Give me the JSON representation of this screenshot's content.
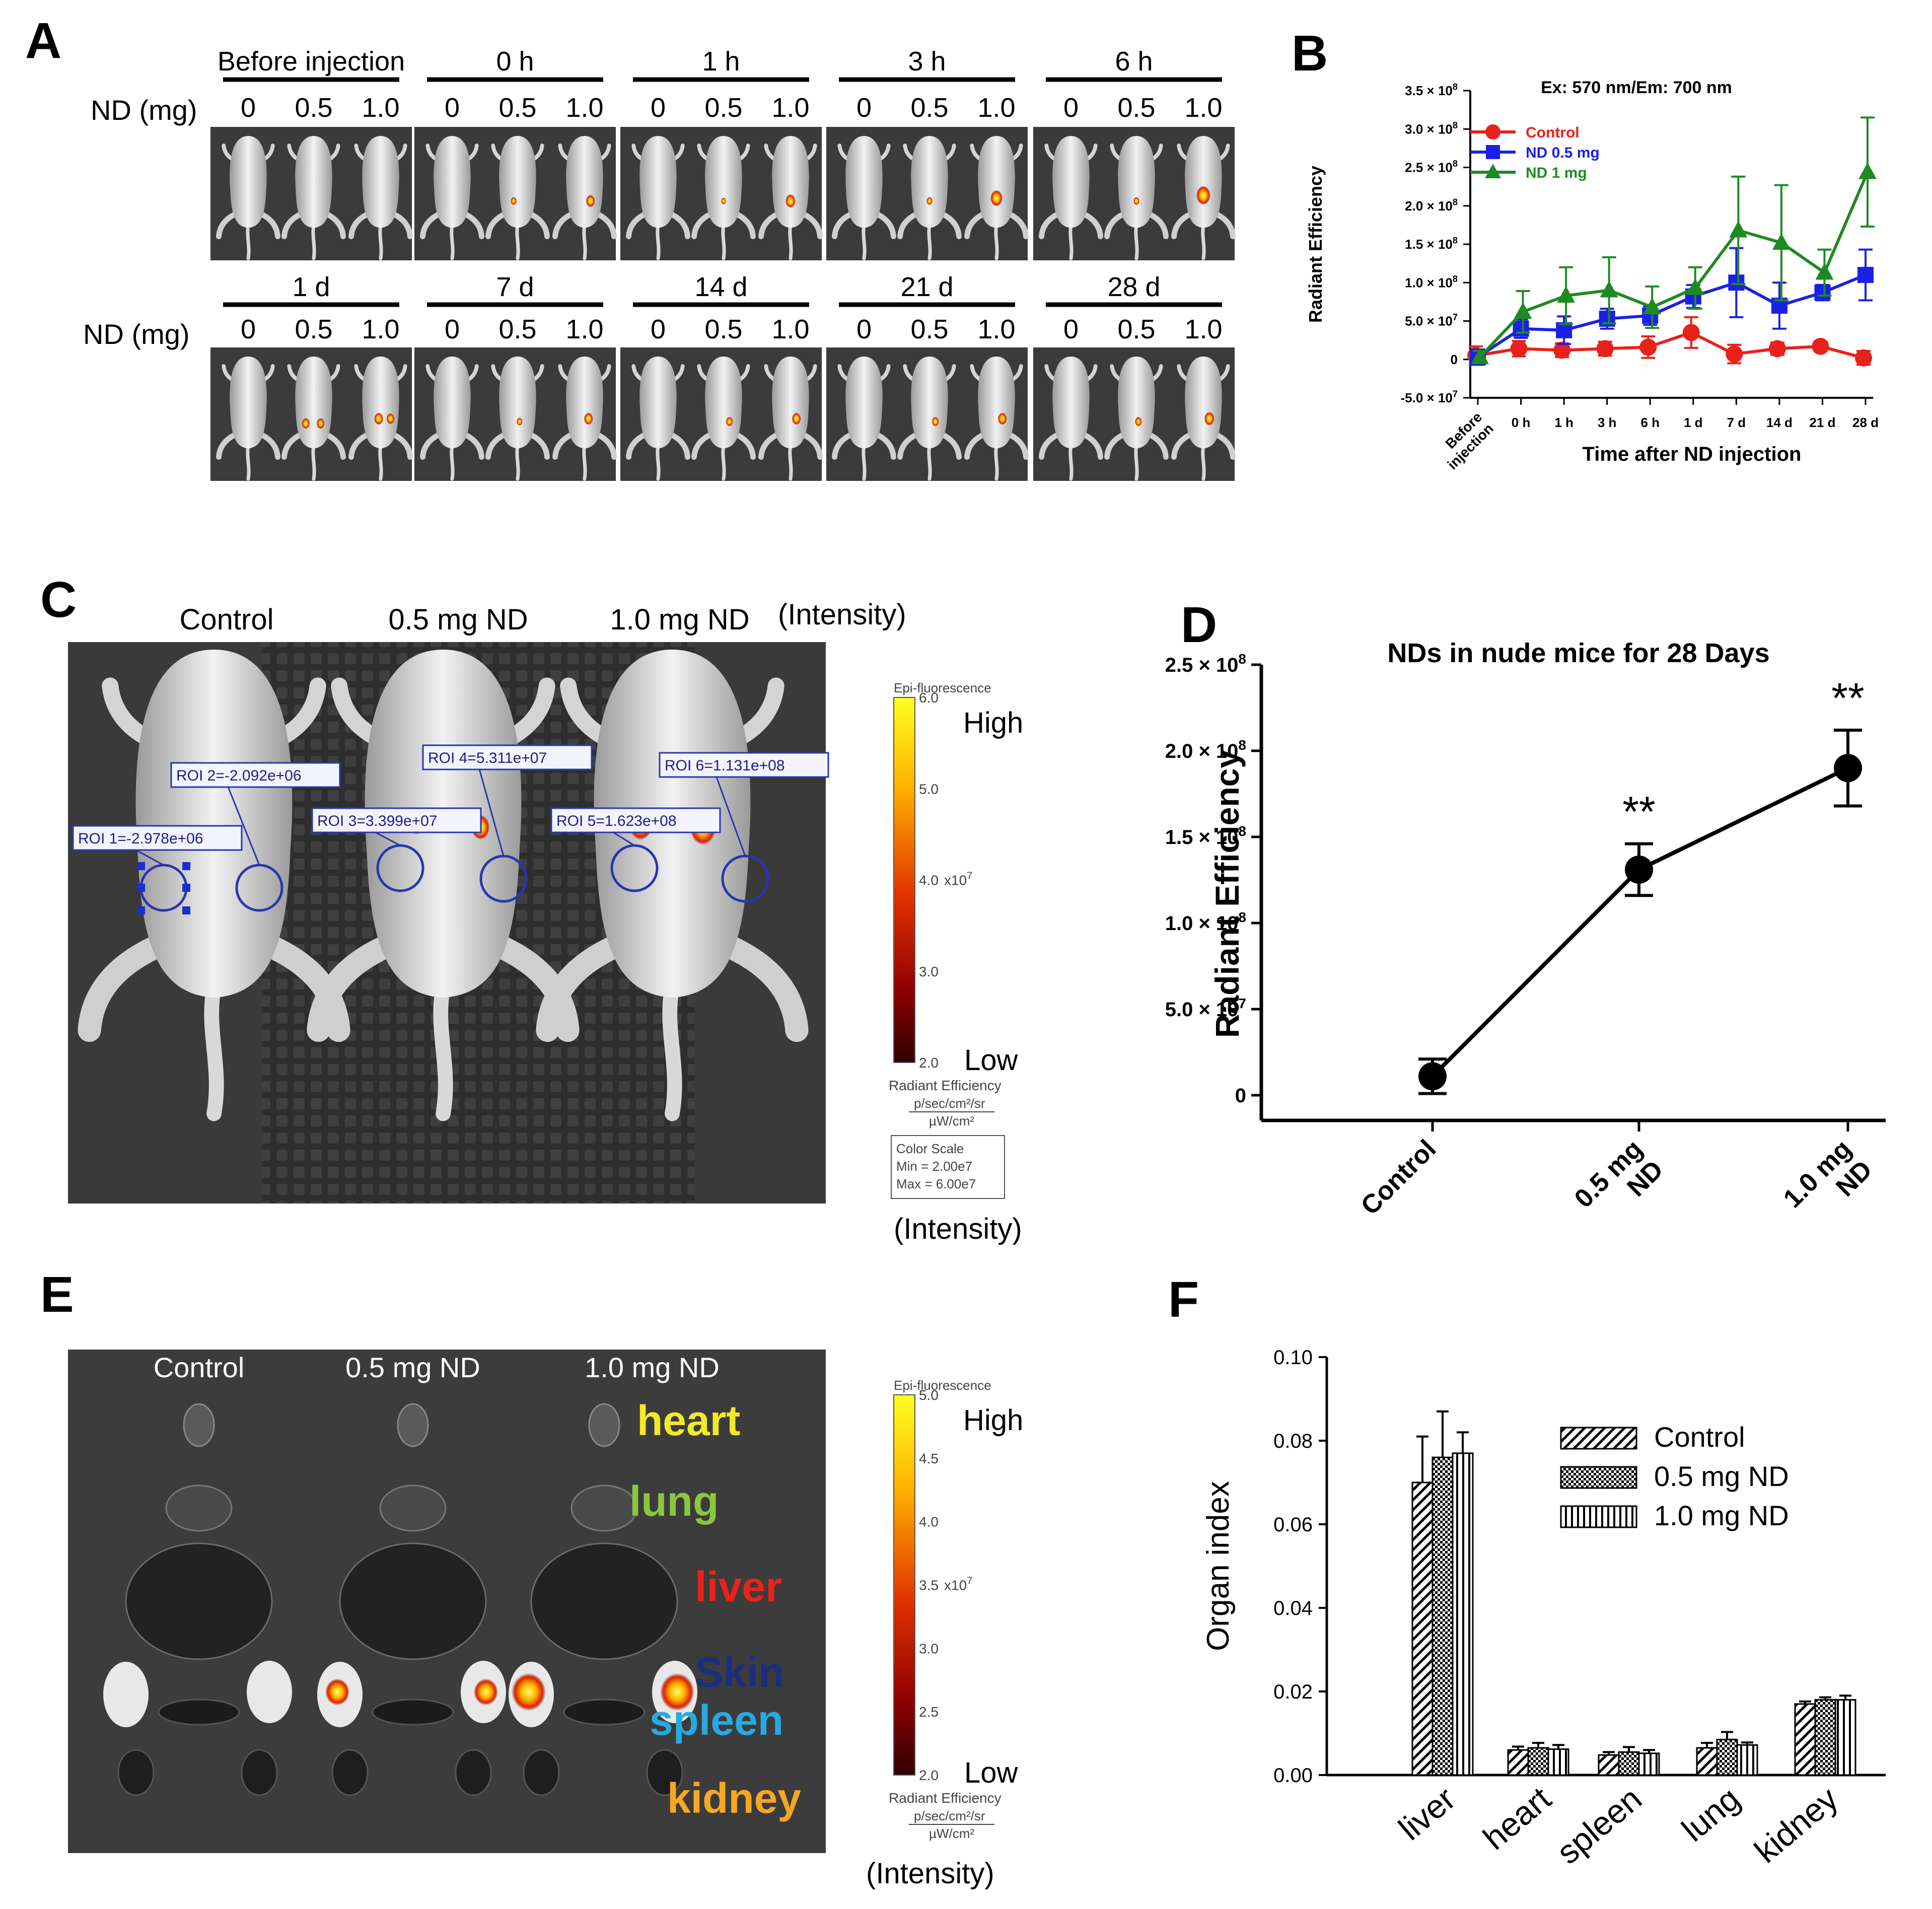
{
  "panel_letters": [
    "A",
    "B",
    "C",
    "D",
    "E",
    "F"
  ],
  "panelA": {
    "row_label": "ND (mg)",
    "doses": [
      "0",
      "0.5",
      "1.0"
    ],
    "row1_times": [
      "Before injection",
      "0 h",
      "1 h",
      "3 h",
      "6 h"
    ],
    "row2_times": [
      "1 d",
      "7 d",
      "14 d",
      "21 d",
      "28 d"
    ]
  },
  "panelC": {
    "groups": [
      "Control",
      "0.5 mg ND",
      "1.0 mg ND"
    ],
    "intensity_label": "(Intensity)",
    "rois": [
      "ROI 1=-2.978e+06",
      "ROI 2=-2.092e+06",
      "ROI 3=3.399e+07",
      "ROI 4=5.311e+07",
      "ROI 5=1.623e+08",
      "ROI 6=1.131e+08"
    ],
    "scale": {
      "title": "Epi-fluorescence",
      "ticks": [
        "6.0",
        "5.0",
        "4.0",
        "3.0",
        "2.0"
      ],
      "exponent": "x10",
      "exponent_power": "7",
      "high": "High",
      "low": "Low",
      "unit_name": "Radiant Efficiency",
      "unit_num": "p/sec/cm²/sr",
      "unit_den": "µW/cm²",
      "box_title": "Color Scale",
      "box_min": "Min = 2.00e7",
      "box_max": "Max = 6.00e7"
    },
    "intensity_bottom": "(Intensity)"
  },
  "panelE": {
    "groups": [
      "Control",
      "0.5 mg ND",
      "1.0 mg ND"
    ],
    "organs": [
      {
        "name": "heart",
        "color": "#f2ea26"
      },
      {
        "name": "lung",
        "color": "#8cc63f"
      },
      {
        "name": "liver",
        "color": "#e8231c"
      },
      {
        "name": "Skin",
        "color": "#1b2f7a"
      },
      {
        "name": "spleen",
        "color": "#27aae1"
      },
      {
        "name": "kidney",
        "color": "#f7a823"
      }
    ],
    "scale": {
      "title": "Epi-fluorescence",
      "ticks": [
        "5.0",
        "4.5",
        "4.0",
        "3.5",
        "3.0",
        "2.5",
        "2.0"
      ],
      "exponent": "x10",
      "exponent_power": "7",
      "high": "High",
      "low": "Low",
      "unit_name": "Radiant Efficiency",
      "unit_num": "p/sec/cm²/sr",
      "unit_den": "µW/cm²"
    },
    "intensity_bottom": "(Intensity)"
  },
  "chart_data": [
    {
      "id": "B",
      "type": "line",
      "title": "Ex: 570 nm/Em: 700 nm",
      "xlabel": "Time after ND injection",
      "ylabel": "Radiant Efficiency",
      "categories": [
        "Before injection",
        "0 h",
        "1 h",
        "3 h",
        "6 h",
        "1 d",
        "7 d",
        "14 d",
        "21 d",
        "28 d"
      ],
      "yticks": [
        "3.5 × 10⁸",
        "3.0 × 10⁸",
        "2.5 × 10⁸",
        "2.0 × 10⁸",
        "1.5 × 10⁸",
        "1.0 × 10⁸",
        "5.0 × 10⁷",
        "0",
        "-5.0 × 10⁷"
      ],
      "ylim": [
        -50000000,
        350000000
      ],
      "series": [
        {
          "name": "Control",
          "color": "#e8211b",
          "marker": "circle",
          "values": [
            5000000,
            14000000,
            12000000,
            14000000,
            16000000,
            35000000,
            7000000,
            14000000,
            17000000,
            2000000
          ],
          "err": [
            12000000,
            10000000,
            9000000,
            9000000,
            14000000,
            20000000,
            12000000,
            8000000,
            6000000,
            9000000
          ]
        },
        {
          "name": "ND 0.5 mg",
          "color": "#1a21e6",
          "marker": "square",
          "values": [
            3000000,
            40000000,
            38000000,
            53000000,
            57000000,
            82000000,
            100000000,
            70000000,
            87000000,
            110000000
          ],
          "err": [
            10000000,
            12000000,
            18000000,
            13000000,
            12000000,
            15000000,
            45000000,
            30000000,
            10000000,
            33000000
          ]
        },
        {
          "name": "ND 1 mg",
          "color": "#1e8a22",
          "marker": "triangle",
          "values": [
            3000000,
            62000000,
            83000000,
            90000000,
            68000000,
            93000000,
            168000000,
            152000000,
            113000000,
            244000000
          ],
          "err": [
            8000000,
            27000000,
            37000000,
            43000000,
            27000000,
            27000000,
            70000000,
            75000000,
            30000000,
            71000000
          ]
        }
      ]
    },
    {
      "id": "D",
      "type": "line",
      "title": "NDs in nude mice for 28 Days",
      "xlabel": "",
      "ylabel": "Radiant Efficiency",
      "categories": [
        "Control",
        "0.5 mg ND",
        "1.0 mg ND"
      ],
      "category_lines": [
        [
          "Control"
        ],
        [
          "0.5 mg",
          "ND"
        ],
        [
          "1.0 mg",
          "ND"
        ]
      ],
      "yticks": [
        "2.5 × 10⁸",
        "2.0 × 10⁸",
        "1.5 × 10⁸",
        "1.0 × 10⁸",
        "5.0 × 10⁷",
        "0"
      ],
      "ylim": [
        0,
        250000000
      ],
      "values": [
        11000000,
        131000000,
        190000000
      ],
      "err": [
        10000000,
        15000000,
        22000000
      ],
      "annotations": [
        "",
        "**",
        "**"
      ]
    },
    {
      "id": "F",
      "type": "bar",
      "title": "",
      "xlabel": "",
      "ylabel": "Organ index",
      "categories": [
        "liver",
        "heart",
        "spleen",
        "lung",
        "kidney"
      ],
      "yticks": [
        "0.10",
        "0.08",
        "0.06",
        "0.04",
        "0.02",
        "0.00"
      ],
      "ylim": [
        0,
        0.1
      ],
      "series": [
        {
          "name": "Control",
          "pattern": "diagonal",
          "values": [
            0.07,
            0.006,
            0.0048,
            0.0065,
            0.017
          ],
          "err": [
            0.011,
            0.0008,
            0.0007,
            0.0012,
            0.0006
          ]
        },
        {
          "name": "0.5 mg ND",
          "pattern": "checker",
          "values": [
            0.076,
            0.0065,
            0.0055,
            0.0085,
            0.018
          ],
          "err": [
            0.011,
            0.0012,
            0.0012,
            0.0018,
            0.0006
          ]
        },
        {
          "name": "1.0 mg ND",
          "pattern": "vertical",
          "values": [
            0.077,
            0.0062,
            0.0052,
            0.0072,
            0.018
          ],
          "err": [
            0.005,
            0.001,
            0.0008,
            0.0006,
            0.001
          ]
        }
      ]
    }
  ]
}
